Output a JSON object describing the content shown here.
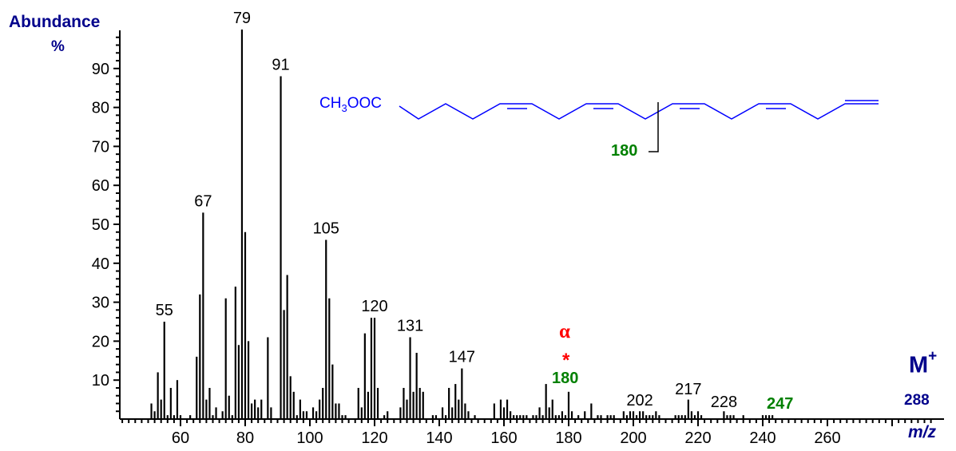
{
  "labels": {
    "y_title": "Abundance",
    "y_unit": "%",
    "x_title": "m/z",
    "molecular_ion_symbol": "M",
    "molecular_ion_charge": "+",
    "molecular_ion_mass": "288",
    "alpha_symbol": "α",
    "asterisk": "*",
    "green_180": "180",
    "green_247": "247",
    "structure_prefix": "CH",
    "structure_sub": "3",
    "structure_suffix": "OOC",
    "fragment_label": "180"
  },
  "colors": {
    "axis": "#000000",
    "bars": "#000000",
    "axis_title": "#00008b",
    "structure": "#0000ff",
    "fragment_green": "#008000",
    "marker_red": "#ff0000"
  },
  "chart_data": {
    "type": "bar",
    "title": "",
    "xlabel": "m/z",
    "ylabel": "Abundance %",
    "xlim": [
      41,
      294
    ],
    "ylim": [
      0,
      100
    ],
    "x_ticks": [
      60,
      80,
      100,
      120,
      140,
      160,
      180,
      200,
      220,
      240,
      260
    ],
    "y_ticks": [
      10,
      20,
      30,
      40,
      50,
      60,
      70,
      80,
      90
    ],
    "grid": false,
    "peak_labels": [
      {
        "mz": 55,
        "text": "55"
      },
      {
        "mz": 67,
        "text": "67"
      },
      {
        "mz": 79,
        "text": "79"
      },
      {
        "mz": 91,
        "text": "91"
      },
      {
        "mz": 105,
        "text": "105"
      },
      {
        "mz": 120,
        "text": "120"
      },
      {
        "mz": 131,
        "text": "131"
      },
      {
        "mz": 147,
        "text": "147"
      },
      {
        "mz": 202,
        "text": "202"
      },
      {
        "mz": 217,
        "text": "217"
      },
      {
        "mz": 228,
        "text": "228"
      }
    ],
    "annotations": [
      {
        "text": "α",
        "mz": 180,
        "color": "#ff0000"
      },
      {
        "text": "*",
        "mz": 180,
        "color": "#ff0000"
      },
      {
        "text": "180",
        "mz": 180,
        "color": "#008000"
      },
      {
        "text": "247",
        "mz": 247,
        "color": "#008000"
      },
      {
        "text": "M+ 288",
        "mz": 288,
        "color": "#00008b"
      }
    ],
    "peaks": [
      [
        51,
        4
      ],
      [
        52,
        2
      ],
      [
        53,
        12
      ],
      [
        54,
        5
      ],
      [
        55,
        25
      ],
      [
        56,
        1
      ],
      [
        57,
        8
      ],
      [
        58,
        1
      ],
      [
        59,
        10
      ],
      [
        60,
        1
      ],
      [
        63,
        1
      ],
      [
        65,
        16
      ],
      [
        66,
        32
      ],
      [
        67,
        53
      ],
      [
        68,
        5
      ],
      [
        69,
        8
      ],
      [
        70,
        1
      ],
      [
        71,
        3
      ],
      [
        73,
        2
      ],
      [
        74,
        31
      ],
      [
        75,
        6
      ],
      [
        76,
        1
      ],
      [
        77,
        34
      ],
      [
        78,
        19
      ],
      [
        79,
        100
      ],
      [
        80,
        48
      ],
      [
        81,
        20
      ],
      [
        82,
        4
      ],
      [
        83,
        5
      ],
      [
        84,
        3
      ],
      [
        85,
        5
      ],
      [
        87,
        21
      ],
      [
        88,
        3
      ],
      [
        91,
        88
      ],
      [
        92,
        28
      ],
      [
        93,
        37
      ],
      [
        94,
        11
      ],
      [
        95,
        7
      ],
      [
        96,
        1
      ],
      [
        97,
        5
      ],
      [
        98,
        2
      ],
      [
        99,
        2
      ],
      [
        101,
        3
      ],
      [
        102,
        2
      ],
      [
        103,
        5
      ],
      [
        104,
        8
      ],
      [
        105,
        46
      ],
      [
        106,
        31
      ],
      [
        107,
        14
      ],
      [
        108,
        4
      ],
      [
        109,
        4
      ],
      [
        110,
        1
      ],
      [
        111,
        1
      ],
      [
        115,
        8
      ],
      [
        116,
        3
      ],
      [
        117,
        22
      ],
      [
        118,
        7
      ],
      [
        119,
        26
      ],
      [
        120,
        26
      ],
      [
        121,
        8
      ],
      [
        123,
        1
      ],
      [
        124,
        2
      ],
      [
        128,
        3
      ],
      [
        129,
        8
      ],
      [
        130,
        5
      ],
      [
        131,
        21
      ],
      [
        132,
        7
      ],
      [
        133,
        17
      ],
      [
        134,
        8
      ],
      [
        135,
        7
      ],
      [
        138,
        1
      ],
      [
        139,
        1
      ],
      [
        141,
        3
      ],
      [
        142,
        1
      ],
      [
        143,
        8
      ],
      [
        144,
        3
      ],
      [
        145,
        9
      ],
      [
        146,
        5
      ],
      [
        147,
        13
      ],
      [
        148,
        4
      ],
      [
        149,
        2
      ],
      [
        151,
        1
      ],
      [
        157,
        4
      ],
      [
        159,
        5
      ],
      [
        160,
        3
      ],
      [
        161,
        5
      ],
      [
        162,
        2
      ],
      [
        163,
        1
      ],
      [
        164,
        1
      ],
      [
        165,
        1
      ],
      [
        166,
        1
      ],
      [
        167,
        1
      ],
      [
        169,
        1
      ],
      [
        170,
        1
      ],
      [
        171,
        3
      ],
      [
        172,
        1
      ],
      [
        173,
        9
      ],
      [
        174,
        3
      ],
      [
        175,
        5
      ],
      [
        176,
        1
      ],
      [
        177,
        1
      ],
      [
        178,
        2
      ],
      [
        179,
        1
      ],
      [
        180,
        7
      ],
      [
        181,
        2
      ],
      [
        183,
        1
      ],
      [
        185,
        2
      ],
      [
        187,
        4
      ],
      [
        189,
        1
      ],
      [
        190,
        1
      ],
      [
        192,
        1
      ],
      [
        193,
        1
      ],
      [
        194,
        1
      ],
      [
        197,
        2
      ],
      [
        198,
        1
      ],
      [
        199,
        2
      ],
      [
        200,
        2
      ],
      [
        201,
        1
      ],
      [
        202,
        2
      ],
      [
        203,
        2
      ],
      [
        204,
        1
      ],
      [
        205,
        1
      ],
      [
        206,
        1
      ],
      [
        207,
        2
      ],
      [
        208,
        1
      ],
      [
        213,
        1
      ],
      [
        214,
        1
      ],
      [
        215,
        1
      ],
      [
        216,
        1
      ],
      [
        217,
        5
      ],
      [
        218,
        2
      ],
      [
        219,
        1
      ],
      [
        220,
        2
      ],
      [
        221,
        1
      ],
      [
        228,
        2
      ],
      [
        229,
        1
      ],
      [
        230,
        1
      ],
      [
        231,
        1
      ],
      [
        234,
        1
      ],
      [
        240,
        1
      ],
      [
        241,
        1
      ],
      [
        242,
        1
      ],
      [
        243,
        1
      ]
    ]
  }
}
